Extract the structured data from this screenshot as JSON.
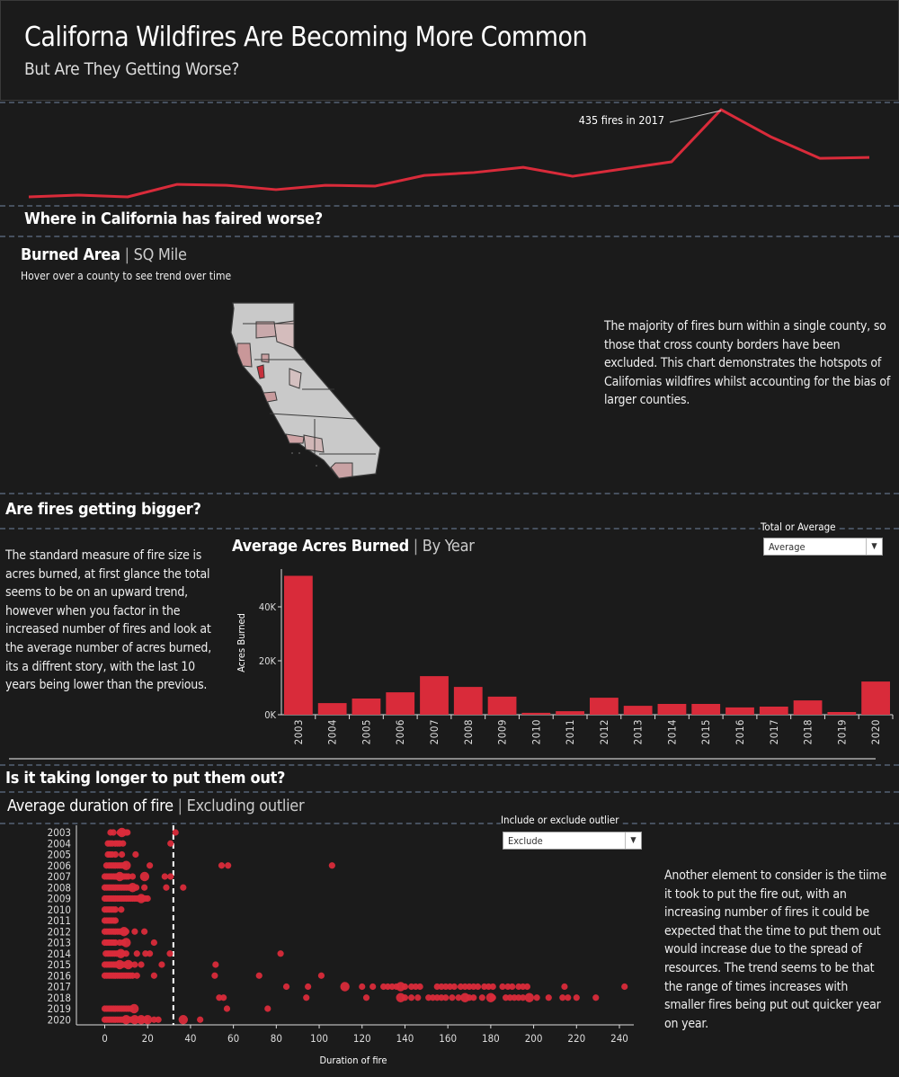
{
  "header": {
    "title": "Californa Wildfires Are Becoming More Common",
    "subtitle": "But Are They Getting Worse?"
  },
  "colors": {
    "background": "#1b1b1b",
    "accent": "#d92b3a",
    "divider": "#46505e",
    "map_base": "#c9c9c9"
  },
  "sections": {
    "map_heading": "Where in California has faired worse?",
    "map_title_bold": "Burned Area",
    "map_title_sep": "|",
    "map_title_light": "SQ Mile",
    "map_hint": "Hover over a county to see trend over time",
    "map_text": "The majority of fires burn within a single county, so those that cross county borders have been excluded. This chart demonstrates the hotspots of  Californias wildfires whilst accounting for the bias of larger counties.",
    "size_heading": "Are fires getting bigger?",
    "size_text": "The standard measure of fire size is acres burned, at first glance the total seems to be on an upward trend, however when you factor in the increased number of fires and look at the average number of acres burned, its a diffrent story, with the last 10 years being lower than the previous.",
    "bar_title_bold": "Average Acres Burned",
    "bar_title_sep": "|",
    "bar_title_light": "By Year",
    "bar_filter_label": "Total or Average",
    "bar_filter_value": "Average",
    "duration_heading": "Is it taking longer to put them out?",
    "duration_title_bold": "Average duration of fire",
    "duration_title_sep": "|",
    "duration_title_light": "Excluding outlier",
    "duration_filter_label": "Include or exclude outlier",
    "duration_filter_value": "Exclude",
    "duration_text": "Another element to consider is the tiime it took to put the fire out, with an increasing number of fires it could be expected that the time to put them out would increase due to the spread of resources. The trend seems to be that the range of times increases with smaller fires being put out quicker year on year."
  },
  "chart_data": [
    {
      "type": "line",
      "x": [
        2003,
        2004,
        2005,
        2006,
        2007,
        2008,
        2009,
        2010,
        2011,
        2012,
        2013,
        2014,
        2015,
        2016,
        2017,
        2018,
        2019,
        2020
      ],
      "values": [
        37,
        45,
        37,
        94,
        90,
        70,
        90,
        86,
        135,
        148,
        172,
        131,
        164,
        197,
        435,
        312,
        213,
        217
      ],
      "annotation": "435 fires in 2017",
      "ylim": [
        0,
        450
      ]
    },
    {
      "type": "bar",
      "categories": [
        "2003",
        "2004",
        "2005",
        "2006",
        "2007",
        "2008",
        "2009",
        "2010",
        "2011",
        "2012",
        "2013",
        "2014",
        "2015",
        "2016",
        "2017",
        "2018",
        "2019",
        "2020"
      ],
      "values": [
        51500,
        4300,
        6000,
        8300,
        14300,
        10300,
        6700,
        700,
        1300,
        6300,
        3300,
        4000,
        4000,
        2700,
        3000,
        5300,
        1000,
        12300
      ],
      "ylabel": "Acres Burned",
      "yticks": [
        "0K",
        "20K",
        "40K"
      ],
      "ytick_values": [
        0,
        20000,
        40000
      ],
      "ylim": [
        0,
        54000
      ]
    },
    {
      "type": "scatter",
      "ylabel": "",
      "xlabel": "Duration of fire",
      "xticks": [
        0,
        20,
        40,
        60,
        80,
        100,
        120,
        140,
        160,
        180,
        200,
        220,
        240
      ],
      "xlim": [
        -10,
        245
      ],
      "reference_line": 32,
      "rows": [
        {
          "year": "2003",
          "points": [
            2.7,
            4,
            7,
            8,
            8.6,
            10,
            10.6,
            33
          ],
          "large": [
            8
          ]
        },
        {
          "year": "2004",
          "points": [
            1.5,
            2.5,
            3.5,
            5,
            6,
            7,
            8.5,
            30.7
          ],
          "large": []
        },
        {
          "year": "2005",
          "points": [
            1.5,
            2.5,
            3.5,
            5,
            8,
            14.4
          ],
          "large": []
        },
        {
          "year": "2006",
          "points": [
            0.8,
            2,
            3,
            4,
            5,
            6,
            7,
            8,
            9,
            10,
            21,
            54.5,
            57.5,
            106
          ],
          "large": [
            10
          ]
        },
        {
          "year": "2007",
          "points": [
            0,
            1,
            2,
            3,
            4,
            5,
            6,
            7,
            8,
            9,
            10,
            11,
            13,
            18.6,
            28,
            30.7
          ],
          "large": [
            18.6,
            7
          ]
        },
        {
          "year": "2008",
          "points": [
            0,
            1,
            2,
            3,
            4,
            5,
            6,
            7,
            8,
            9,
            10,
            11,
            12,
            13,
            14.7,
            18.5,
            28.7,
            36.6
          ],
          "large": [
            13
          ]
        },
        {
          "year": "2009",
          "points": [
            0,
            1,
            2,
            3,
            4,
            5,
            6,
            7,
            8,
            9,
            10,
            11,
            12,
            13,
            14,
            15,
            16,
            17,
            18,
            19,
            20
          ],
          "large": [
            17
          ]
        },
        {
          "year": "2010",
          "points": [
            0,
            1,
            2,
            3,
            4,
            5,
            7.7
          ],
          "large": []
        },
        {
          "year": "2011",
          "points": [
            0,
            1,
            2,
            3,
            4,
            5
          ],
          "large": []
        },
        {
          "year": "2012",
          "points": [
            0,
            1,
            2,
            3,
            4,
            5,
            6,
            7,
            8,
            9,
            10,
            14,
            18.5
          ],
          "large": [
            9
          ]
        },
        {
          "year": "2013",
          "points": [
            0,
            1,
            2,
            3,
            4,
            5,
            7,
            8.5,
            10,
            23
          ],
          "large": [
            10
          ]
        },
        {
          "year": "2014",
          "points": [
            0.5,
            1.5,
            2.5,
            3.5,
            4.5,
            5.5,
            6.5,
            7.5,
            8.5,
            10,
            15,
            19,
            21,
            30.4,
            82
          ],
          "large": [
            7.5
          ]
        },
        {
          "year": "2015",
          "points": [
            0,
            1,
            2,
            3,
            4,
            5,
            6,
            7,
            8,
            9,
            10,
            11,
            12,
            14,
            17,
            26.6,
            51.7
          ],
          "large": [
            7,
            11
          ]
        },
        {
          "year": "2016",
          "points": [
            0,
            1,
            2,
            3,
            4,
            5,
            6,
            7,
            8,
            9,
            10,
            11,
            12,
            13,
            15,
            23,
            51.3,
            72,
            101
          ],
          "large": []
        },
        {
          "year": "2017",
          "points": [
            84.7,
            94.8,
            112,
            120,
            125,
            130,
            132,
            134,
            136,
            138,
            140,
            143,
            145,
            147,
            155,
            157,
            159,
            161,
            163,
            166,
            168,
            170,
            172,
            174,
            177,
            179,
            181,
            185.5,
            188,
            190,
            193,
            195,
            197,
            214.4,
            242.4
          ],
          "large": [
            112,
            138
          ]
        },
        {
          "year": "2018",
          "points": [
            53.4,
            55.4,
            94,
            122,
            138,
            140,
            143,
            146,
            151,
            153,
            155,
            157,
            159,
            162,
            165,
            168,
            170,
            172,
            176,
            180,
            181,
            187,
            189,
            191,
            193,
            195,
            198,
            201.5,
            207,
            213.5,
            216,
            220,
            229
          ],
          "large": [
            138,
            168,
            180,
            198
          ]
        },
        {
          "year": "2019",
          "points": [
            0,
            1,
            2,
            3,
            4,
            5,
            6,
            7,
            8,
            9,
            10,
            11,
            12,
            13.7,
            57,
            76
          ],
          "large": [
            13.7
          ]
        },
        {
          "year": "2020",
          "points": [
            0,
            1,
            2,
            3,
            4,
            5,
            6,
            7,
            8,
            9,
            10,
            11,
            12,
            13,
            14,
            15,
            16,
            17,
            18,
            19,
            20,
            23,
            25,
            36.6,
            44.5
          ],
          "large": [
            10,
            14,
            17,
            20,
            36.6
          ]
        }
      ]
    }
  ]
}
